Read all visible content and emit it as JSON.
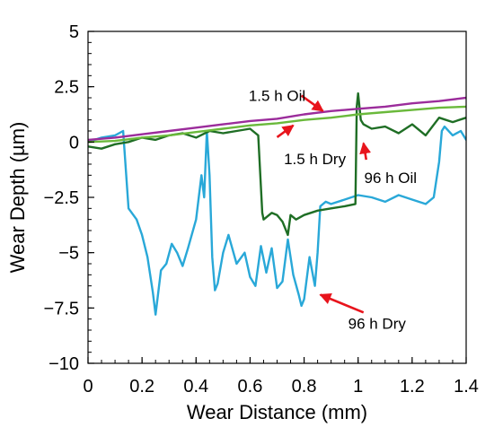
{
  "chart_data": {
    "type": "line",
    "xlabel": "Wear Distance (mm)",
    "ylabel": "Wear Depth (µm)",
    "xlim": [
      0,
      1.4
    ],
    "ylim": [
      -10,
      5
    ],
    "x_ticks": [
      0,
      0.2,
      0.4,
      0.6,
      0.8,
      1,
      1.2,
      1.4
    ],
    "x_tick_labels": [
      "0",
      "0.2",
      "0.4",
      "0.6",
      "0.8",
      "1",
      "1.2",
      "1.4"
    ],
    "y_ticks": [
      -10,
      -7.5,
      -5,
      -2.5,
      0,
      2.5,
      5
    ],
    "y_tick_labels": [
      "−10",
      "−7.5",
      "−5",
      "−2.5",
      "0",
      "2.5",
      "5"
    ],
    "grid": false,
    "legend": "none",
    "series": [
      {
        "color": "#29a8d8",
        "x": [
          0,
          0.05,
          0.1,
          0.13,
          0.15,
          0.18,
          0.2,
          0.22,
          0.24,
          0.25,
          0.27,
          0.29,
          0.31,
          0.33,
          0.35,
          0.37,
          0.4,
          0.42,
          0.43,
          0.44,
          0.45,
          0.46,
          0.47,
          0.48,
          0.5,
          0.52,
          0.55,
          0.58,
          0.6,
          0.62,
          0.64,
          0.66,
          0.68,
          0.7,
          0.72,
          0.74,
          0.76,
          0.78,
          0.79,
          0.8,
          0.82,
          0.84,
          0.85,
          0.86,
          0.88,
          0.9,
          0.95,
          1,
          1.05,
          1.1,
          1.15,
          1.2,
          1.25,
          1.28,
          1.3,
          1.31,
          1.32,
          1.35,
          1.38,
          1.4
        ],
        "y": [
          0,
          0.2,
          0.3,
          0.5,
          -3,
          -3.5,
          -4.2,
          -5.2,
          -6.8,
          -7.8,
          -5.8,
          -5.5,
          -4.6,
          -5,
          -5.6,
          -4.8,
          -3.5,
          -1.5,
          -2.5,
          0.5,
          -1.5,
          -5.2,
          -6.7,
          -6.4,
          -5,
          -4.2,
          -5.5,
          -5,
          -6.1,
          -6.5,
          -4.7,
          -5.9,
          -4.8,
          -6.6,
          -6.3,
          -4.4,
          -6,
          -6.9,
          -7.4,
          -7.1,
          -5.2,
          -6.5,
          -5,
          -2.9,
          -2.7,
          -2.8,
          -2.6,
          -2.4,
          -2.5,
          -2.7,
          -2.4,
          -2.6,
          -2.8,
          -2.5,
          -0.9,
          0.5,
          0.7,
          0.3,
          0.5,
          0.1
        ]
      },
      {
        "color": "#1f6e25",
        "x": [
          0,
          0.05,
          0.1,
          0.15,
          0.2,
          0.25,
          0.3,
          0.35,
          0.4,
          0.45,
          0.5,
          0.55,
          0.6,
          0.63,
          0.645,
          0.65,
          0.68,
          0.7,
          0.72,
          0.74,
          0.75,
          0.77,
          0.8,
          0.85,
          0.9,
          0.95,
          0.99,
          0.995,
          1,
          1.01,
          1.02,
          1.05,
          1.1,
          1.15,
          1.2,
          1.25,
          1.3,
          1.35,
          1.4
        ],
        "y": [
          -0.2,
          -0.3,
          -0.1,
          0,
          0.2,
          0.1,
          0.3,
          0.4,
          0.2,
          0.5,
          0.4,
          0.5,
          0.6,
          0.3,
          -3.2,
          -3.5,
          -3.2,
          -3.3,
          -3.6,
          -4.2,
          -3.3,
          -3.5,
          -3.3,
          -3.1,
          -3,
          -2.9,
          -2.8,
          1.6,
          2.2,
          1,
          0.8,
          0.6,
          0.7,
          0.4,
          0.8,
          0.3,
          1.1,
          0.9,
          1.1
        ]
      },
      {
        "color": "#6ab93b",
        "x": [
          0,
          0.1,
          0.2,
          0.3,
          0.4,
          0.5,
          0.6,
          0.7,
          0.8,
          0.9,
          1,
          1.1,
          1.2,
          1.3,
          1.4
        ],
        "y": [
          0,
          0.05,
          0.2,
          0.3,
          0.45,
          0.6,
          0.75,
          0.85,
          1,
          1.1,
          1.25,
          1.35,
          1.45,
          1.55,
          1.6
        ]
      },
      {
        "color": "#9b2c9b",
        "x": [
          0,
          0.1,
          0.2,
          0.3,
          0.4,
          0.5,
          0.6,
          0.7,
          0.8,
          0.9,
          1,
          1.1,
          1.2,
          1.3,
          1.4
        ],
        "y": [
          0.1,
          0.2,
          0.35,
          0.5,
          0.65,
          0.8,
          0.95,
          1.05,
          1.25,
          1.4,
          1.5,
          1.6,
          1.75,
          1.85,
          2
        ]
      }
    ],
    "annotations": [
      {
        "text": "1.5 h Oil",
        "text_x": 0.7,
        "text_y": 2.1,
        "arrow_from": [
          0.79,
          2.1
        ],
        "arrow_to": [
          0.87,
          1.4
        ]
      },
      {
        "text": "1.5 h Dry",
        "text_x": 0.84,
        "text_y": -0.75,
        "arrow_from": [
          0.7,
          0.22
        ],
        "arrow_to": [
          0.76,
          0.75
        ]
      },
      {
        "text": "96 h Oil",
        "text_x": 1.12,
        "text_y": -1.6,
        "arrow_from": [
          1.03,
          -0.8
        ],
        "arrow_to": [
          1.02,
          -0.05
        ]
      },
      {
        "text": "96 h Dry",
        "text_x": 1.07,
        "text_y": -8.2,
        "arrow_from": [
          1.02,
          -7.7
        ],
        "arrow_to": [
          0.86,
          -6.9
        ]
      }
    ]
  }
}
